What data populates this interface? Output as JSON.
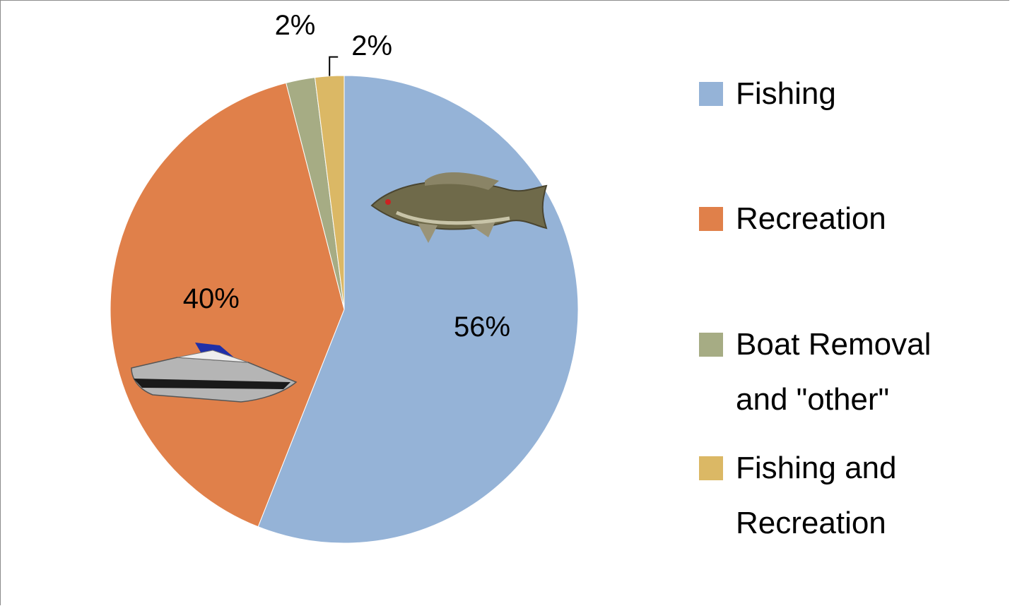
{
  "chart_data": {
    "type": "pie",
    "categories": [
      "Fishing",
      "Recreation",
      "Boat Removal and \"other\"",
      "Fishing and Recreation"
    ],
    "values": [
      56,
      40,
      2,
      2
    ],
    "value_labels": [
      "56%",
      "40%",
      "2%",
      "2%"
    ],
    "colors": [
      "#95b3d7",
      "#e0804a",
      "#a6ac84",
      "#dbb865"
    ]
  }
}
